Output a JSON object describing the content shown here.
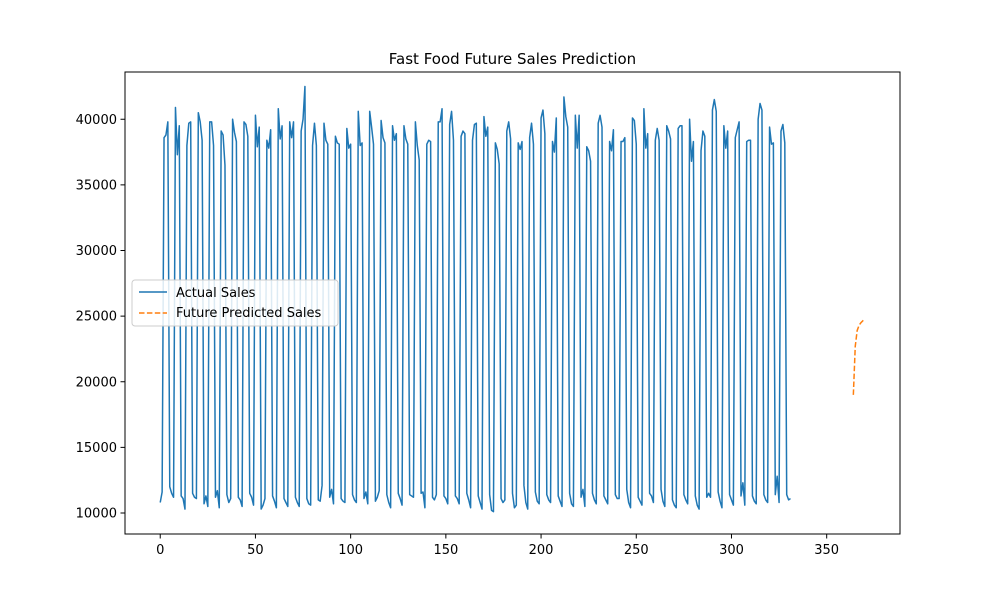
{
  "chart_data": {
    "type": "line",
    "title": "Fast Food Future Sales Prediction",
    "xlabel": "",
    "ylabel": "",
    "xlim": [
      -18.5,
      388.5
    ],
    "ylim": [
      8400,
      43600
    ],
    "x_ticks": [
      0,
      50,
      100,
      150,
      200,
      250,
      300,
      350
    ],
    "y_ticks": [
      10000,
      15000,
      20000,
      25000,
      30000,
      35000,
      40000
    ],
    "grid": false,
    "legend": {
      "position": "center-left",
      "entries": [
        "Actual Sales",
        "Future Predicted Sales"
      ]
    },
    "series": [
      {
        "name": "Actual Sales",
        "color": "#1f77b4",
        "style": "solid",
        "x_start": 0,
        "values": [
          10800,
          11600,
          38600,
          38800,
          39800,
          12000,
          11500,
          11200,
          40900,
          37300,
          39500,
          11300,
          11100,
          10300,
          38000,
          39700,
          39800,
          11500,
          11200,
          11100,
          40500,
          39800,
          38400,
          10700,
          11300,
          10500,
          39800,
          39800,
          38000,
          11200,
          11700,
          10400,
          39100,
          38800,
          36500,
          11400,
          10800,
          11100,
          40000,
          39000,
          38300,
          11200,
          11000,
          10500,
          39800,
          39600,
          38700,
          11500,
          11200,
          10600,
          40300,
          37900,
          39400,
          10300,
          10600,
          11100,
          38400,
          37800,
          39200,
          11300,
          10900,
          10400,
          40800,
          38500,
          39500,
          11100,
          10800,
          10500,
          39800,
          38600,
          39800,
          11200,
          10800,
          10500,
          39100,
          40000,
          42500,
          11100,
          10700,
          10600,
          38000,
          39700,
          38000,
          11000,
          10900,
          12100,
          39700,
          38400,
          38100,
          11200,
          11800,
          10700,
          38700,
          38200,
          38100,
          11100,
          10900,
          10800,
          39300,
          37800,
          38100,
          11400,
          11000,
          10800,
          40600,
          38000,
          38200,
          11100,
          11600,
          10700,
          40600,
          39400,
          38100,
          10900,
          11200,
          11700,
          39900,
          38600,
          38200,
          11400,
          10800,
          10400,
          39500,
          38400,
          38900,
          11500,
          11100,
          10600,
          39500,
          38500,
          38100,
          11400,
          11300,
          11200,
          39800,
          38000,
          36900,
          11500,
          11600,
          10400,
          38100,
          38400,
          38300,
          11200,
          11000,
          11400,
          39800,
          39800,
          40800,
          11300,
          11100,
          10700,
          39600,
          40600,
          38400,
          11300,
          11100,
          10700,
          38700,
          39100,
          38900,
          11500,
          11000,
          10400,
          38400,
          39600,
          39700,
          11300,
          10800,
          10300,
          40200,
          38700,
          39400,
          11400,
          10200,
          10100,
          38200,
          37700,
          36600,
          11100,
          10800,
          11000,
          39100,
          39800,
          38500,
          11500,
          10400,
          10600,
          38200,
          37700,
          38300,
          12100,
          10800,
          10300,
          38600,
          39700,
          38100,
          11600,
          10900,
          10700,
          40100,
          40700,
          38900,
          11400,
          11000,
          10800,
          38300,
          37500,
          40100,
          11300,
          10900,
          10500,
          41700,
          40200,
          39400,
          11500,
          10700,
          10500,
          40300,
          37800,
          40300,
          11200,
          11800,
          10500,
          37900,
          37600,
          36800,
          11500,
          11000,
          10700,
          39700,
          40300,
          39400,
          11300,
          11000,
          10700,
          38300,
          37600,
          39200,
          11400,
          11100,
          11100,
          38300,
          38300,
          38600,
          11800,
          10800,
          10400,
          40100,
          39900,
          38100,
          11200,
          10900,
          10600,
          40800,
          37800,
          38900,
          11500,
          11300,
          10800,
          38400,
          39300,
          38400,
          11800,
          10900,
          10500,
          39500,
          39100,
          38500,
          11000,
          10600,
          10400,
          39300,
          39500,
          39500,
          11400,
          11000,
          10700,
          40000,
          36800,
          38300,
          11300,
          10600,
          10300,
          37600,
          39100,
          38700,
          11200,
          11500,
          11200,
          40700,
          41500,
          40600,
          11600,
          10900,
          10400,
          39500,
          37800,
          39100,
          11400,
          11000,
          10600,
          38600,
          39200,
          39800,
          11300,
          12300,
          10600,
          38300,
          38400,
          38400,
          11300,
          10900,
          10700,
          40000,
          41200,
          40700,
          11400,
          11000,
          10800,
          39400,
          38100,
          38200,
          11400,
          12800,
          10800,
          39100,
          39600,
          38200,
          11400,
          11000,
          11100
        ]
      },
      {
        "name": "Future Predicted Sales",
        "color": "#ff7f0e",
        "style": "dashed",
        "x": [
          364,
          365,
          366,
          367,
          368,
          369,
          370
        ],
        "values": [
          19000,
          22700,
          23900,
          24300,
          24500,
          24650,
          24750
        ]
      }
    ]
  }
}
